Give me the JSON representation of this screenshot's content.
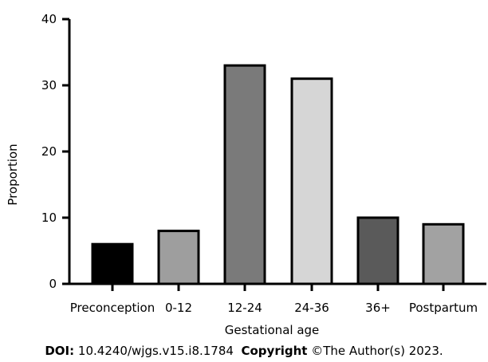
{
  "chart_data": {
    "type": "bar",
    "categories": [
      "Preconception",
      "0-12",
      "12-24",
      "24-36",
      "36+",
      "Postpartum"
    ],
    "values": [
      6,
      8,
      33,
      31,
      10,
      9
    ],
    "colors": [
      "#000000",
      "#9e9e9e",
      "#7a7a7a",
      "#d6d6d6",
      "#5a5a5a",
      "#a2a2a2"
    ],
    "xlabel": "Gestational age",
    "ylabel": "Proportion",
    "ylim": [
      0,
      40
    ],
    "yticks": [
      0,
      10,
      20,
      30,
      40
    ],
    "grid": false
  },
  "footer": {
    "doi_label": "DOI:",
    "doi_value": "10.4240/wjgs.v15.i8.1784",
    "copyright_label": "Copyright",
    "copyright_value": "©The Author(s) 2023."
  }
}
